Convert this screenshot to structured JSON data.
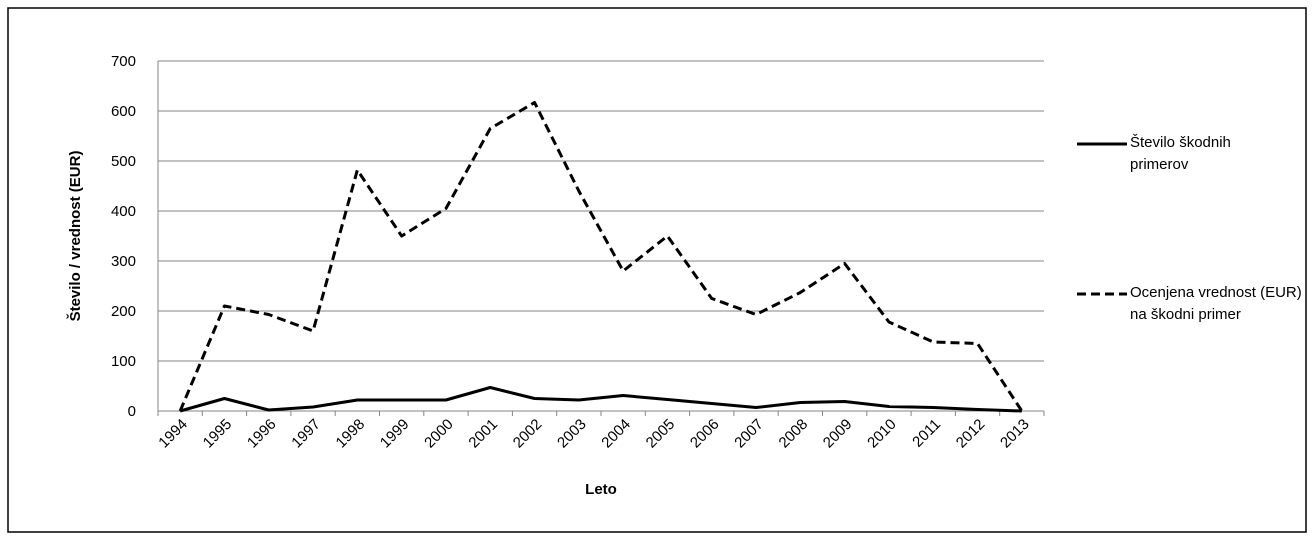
{
  "chart_data": {
    "type": "line",
    "x_label": "Leto",
    "y_label": "Število / vrednost (EUR)",
    "categories": [
      "1994",
      "1995",
      "1996",
      "1997",
      "1998",
      "1999",
      "2000",
      "2001",
      "2002",
      "2003",
      "2004",
      "2005",
      "2006",
      "2007",
      "2008",
      "2009",
      "2010",
      "2011",
      "2012",
      "2013"
    ],
    "series": [
      {
        "name": "Število škodnih primerov",
        "color": "#000000",
        "dash": "solid",
        "values": [
          0,
          25,
          2,
          8,
          22,
          22,
          22,
          47,
          25,
          22,
          31,
          23,
          15,
          7,
          17,
          19,
          9,
          7,
          3,
          0
        ]
      },
      {
        "name": "Ocenjena vrednost (EUR) na škodni primer",
        "color": "#000000",
        "dash": "dashed",
        "values": [
          0,
          210,
          193,
          160,
          482,
          350,
          405,
          565,
          617,
          440,
          280,
          350,
          225,
          193,
          237,
          295,
          178,
          138,
          135,
          0
        ]
      }
    ],
    "ylim": [
      0,
      700
    ],
    "yticks": [
      0,
      100,
      200,
      300,
      400,
      500,
      600,
      700
    ],
    "grid": true,
    "legend": "right"
  }
}
